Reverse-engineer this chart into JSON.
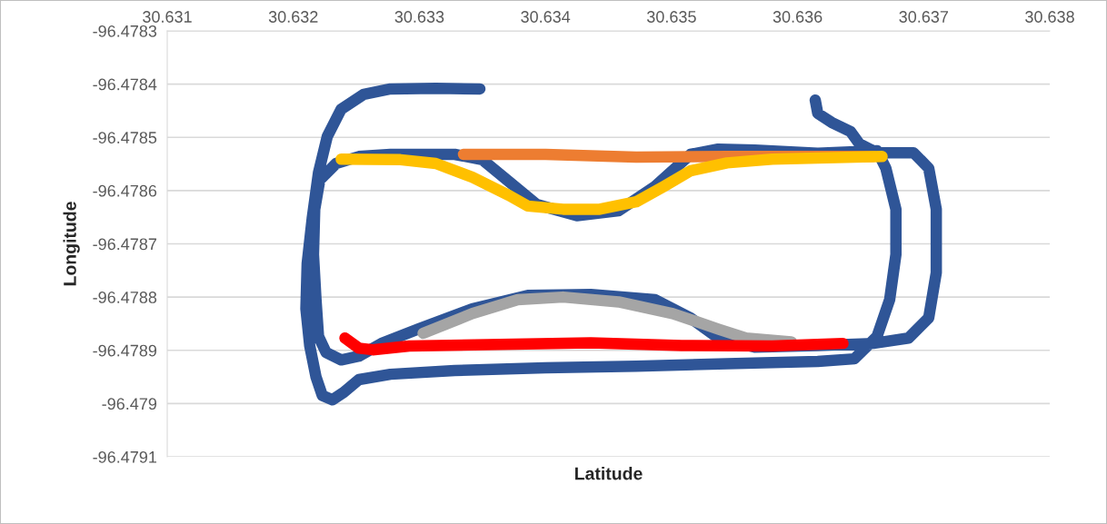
{
  "chart_data": {
    "type": "line",
    "xlabel": "Latitude",
    "ylabel": "Longitude",
    "xlim": [
      30.631,
      30.638
    ],
    "xticks": [
      30.631,
      30.632,
      30.633,
      30.634,
      30.635,
      30.636,
      30.637,
      30.638
    ],
    "ylim": [
      -96.4791,
      -96.4783
    ],
    "yticks": [
      -96.4791,
      -96.479,
      -96.4789,
      -96.4788,
      -96.4787,
      -96.4786,
      -96.4785,
      -96.4784,
      -96.4783
    ],
    "grid": "y",
    "legend": false,
    "line_style": "solid",
    "series": [
      {
        "color": "#2f5597",
        "x": [
          30.63614,
          30.63616,
          30.63627,
          30.63642,
          30.63649,
          30.63663,
          30.63692,
          30.63704,
          30.6371,
          30.6371,
          30.63704,
          30.63688,
          30.6366,
          30.63616,
          30.63566,
          30.63537,
          30.63515,
          30.63487,
          30.63436,
          30.63386,
          30.63342,
          30.63299,
          30.6327,
          30.63252,
          30.63238,
          30.63226,
          30.6322,
          30.63218,
          30.63216,
          30.63217,
          30.63221,
          30.63234,
          30.63252,
          30.63277,
          30.63328,
          30.6335,
          30.63371,
          30.63393,
          30.63425,
          30.63458,
          30.63487,
          30.63515,
          30.63537,
          30.63566,
          30.63616,
          30.63663,
          30.6367,
          30.63678,
          30.63678,
          30.63673,
          30.63663,
          30.63645,
          30.63616,
          30.63544,
          30.63472,
          30.634,
          30.63328,
          30.63277,
          30.63252,
          30.6324,
          30.63231,
          30.63223,
          30.63218,
          30.63213,
          30.6321,
          30.63211,
          30.63215,
          30.6322,
          30.63227,
          30.63238,
          30.63256,
          30.63277,
          30.63313,
          30.63348
        ],
        "values": [
          -96.47843,
          -96.478455,
          -96.478472,
          -96.478489,
          -96.478512,
          -96.478529,
          -96.478529,
          -96.478558,
          -96.478635,
          -96.478754,
          -96.478839,
          -96.478877,
          -96.478887,
          -96.478891,
          -96.478894,
          -96.478877,
          -96.478839,
          -96.478805,
          -96.478795,
          -96.478797,
          -96.478822,
          -96.47886,
          -96.478887,
          -96.478911,
          -96.478918,
          -96.478904,
          -96.478874,
          -96.478805,
          -96.47872,
          -96.478635,
          -96.47858,
          -96.478549,
          -96.478536,
          -96.478532,
          -96.478532,
          -96.478542,
          -96.478583,
          -96.478626,
          -96.478647,
          -96.478638,
          -96.478592,
          -96.478532,
          -96.478522,
          -96.478524,
          -96.47853,
          -96.478525,
          -96.478558,
          -96.478635,
          -96.47872,
          -96.478805,
          -96.478874,
          -96.478916,
          -96.478921,
          -96.478925,
          -96.47893,
          -96.478933,
          -96.478938,
          -96.478945,
          -96.478955,
          -96.478979,
          -96.478993,
          -96.478985,
          -96.47895,
          -96.478891,
          -96.478822,
          -96.478737,
          -96.478652,
          -96.478566,
          -96.478498,
          -96.478447,
          -96.478419,
          -96.478409,
          -96.478408,
          -96.478409
        ]
      },
      {
        "color": "#ed7d31",
        "x": [
          30.63335,
          30.634,
          30.63472,
          30.63544,
          30.63616,
          30.6366
        ],
        "values": [
          -96.478532,
          -96.478532,
          -96.478537,
          -96.478536,
          -96.478536,
          -96.478536
        ]
      },
      {
        "color": "#ffc000",
        "x": [
          30.63238,
          30.63285,
          30.63313,
          30.63342,
          30.63371,
          30.63386,
          30.63414,
          30.63443,
          30.63472,
          30.63494,
          30.63515,
          30.63544,
          30.6358,
          30.63616,
          30.63667
        ],
        "values": [
          -96.478541,
          -96.478542,
          -96.478549,
          -96.478575,
          -96.478609,
          -96.478629,
          -96.478635,
          -96.478635,
          -96.478621,
          -96.478592,
          -96.478563,
          -96.478548,
          -96.478541,
          -96.478539,
          -96.478536
        ]
      },
      {
        "color": "#a5a5a5",
        "x": [
          30.63303,
          30.63342,
          30.63378,
          30.63414,
          30.63458,
          30.63501,
          30.63537,
          30.63559,
          30.63595
        ],
        "values": [
          -96.478868,
          -96.478831,
          -96.478805,
          -96.4788,
          -96.478809,
          -96.478831,
          -96.47886,
          -96.478877,
          -96.478884
        ]
      },
      {
        "color": "#ff0000",
        "x": [
          30.63241,
          30.63252,
          30.63263,
          30.63292,
          30.63364,
          30.63436,
          30.63508,
          30.6358,
          30.63636
        ],
        "values": [
          -96.478877,
          -96.478896,
          -96.478899,
          -96.478892,
          -96.478889,
          -96.478886,
          -96.478891,
          -96.478892,
          -96.478887
        ]
      }
    ]
  }
}
